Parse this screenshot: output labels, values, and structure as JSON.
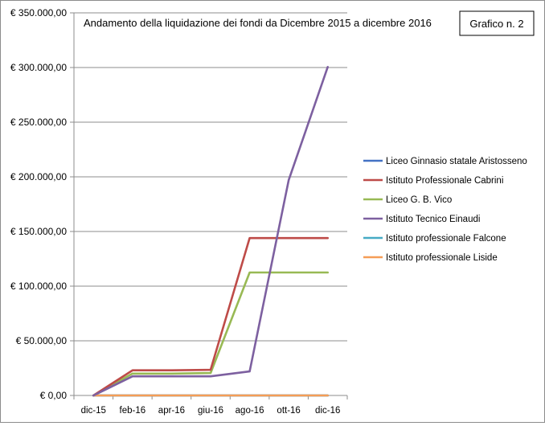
{
  "chart_data": {
    "type": "line",
    "title": "Andamento della liquidazione  dei fondi da Dicembre 2015 a dicembre 2016",
    "badge": "Grafico n. 2",
    "xlabel": "",
    "ylabel": "",
    "categories": [
      "dic-15",
      "feb-16",
      "apr-16",
      "giu-16",
      "ago-16",
      "ott-16",
      "dic-16"
    ],
    "ylim": [
      0,
      350000
    ],
    "yticks": [
      0,
      50000,
      100000,
      150000,
      200000,
      250000,
      300000,
      350000
    ],
    "ytick_labels": [
      "€ 0,00",
      "€ 50.000,00",
      "€ 100.000,00",
      "€ 150.000,00",
      "€ 200.000,00",
      "€ 250.000,00",
      "€ 300.000,00",
      "€ 350.000,00"
    ],
    "grid": true,
    "legend_position": "right",
    "series": [
      {
        "name": "Liceo Ginnasio statale Aristosseno",
        "color": "#4472c4",
        "values": [
          0,
          0,
          0,
          0,
          0,
          0,
          0
        ]
      },
      {
        "name": "Istituto Professionale Cabrini",
        "color": "#be4b48",
        "values": [
          0,
          23000,
          23000,
          23500,
          144000,
          144000,
          144000
        ]
      },
      {
        "name": "Liceo G. B. Vico",
        "color": "#98b954",
        "values": [
          0,
          20000,
          20000,
          20500,
          112500,
          112500,
          112500
        ]
      },
      {
        "name": "Istituto Tecnico Einaudi",
        "color": "#7d60a0",
        "values": [
          0,
          17500,
          17500,
          17500,
          22000,
          197000,
          300500
        ]
      },
      {
        "name": "Istituto professionale Falcone",
        "color": "#46aac5",
        "values": [
          0,
          0,
          0,
          0,
          0,
          0,
          0
        ]
      },
      {
        "name": "Istituto professionale Liside",
        "color": "#f59d56",
        "values": [
          0,
          0,
          0,
          0,
          0,
          0,
          0
        ]
      }
    ]
  }
}
